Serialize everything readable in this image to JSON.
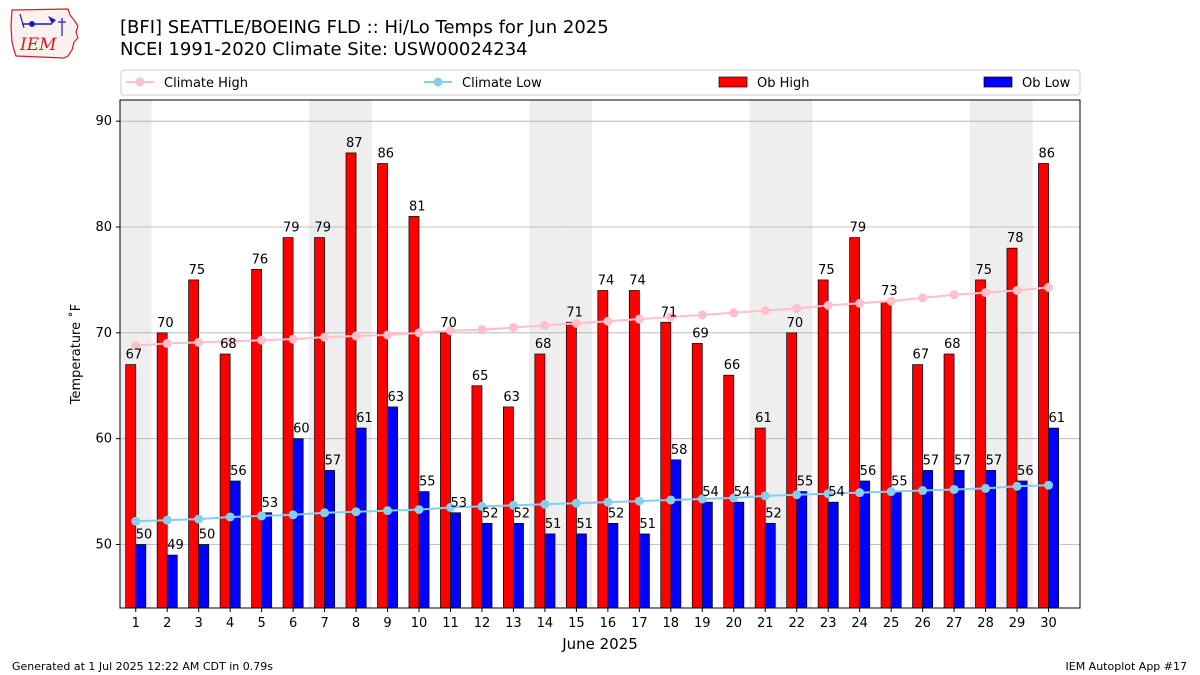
{
  "header": {
    "title_line1": "[BFI] SEATTLE/BOEING FLD :: Hi/Lo Temps for Jun 2025",
    "title_line2": "NCEI 1991-2020 Climate Site: USW00024234",
    "logo_text": "IEM"
  },
  "footer": {
    "generated": "Generated at 1 Jul 2025 12:22 AM CDT in 0.79s",
    "app": "IEM Autoplot App #17"
  },
  "colors": {
    "ob_high": "#ff0000",
    "ob_low": "#0000ff",
    "climate_high": "#ffc0cb",
    "climate_low": "#87ceeb",
    "weekend_shade": "#eeeeee",
    "grid": "#b0b0b0"
  },
  "chart_data": {
    "type": "bar",
    "xlabel": "June 2025",
    "ylabel": "Temperature ˚F",
    "ylim": [
      44,
      92
    ],
    "yticks": [
      50,
      60,
      70,
      80,
      90
    ],
    "grid": "horizontal",
    "legend_placement": "top",
    "categories": [
      "1",
      "2",
      "3",
      "4",
      "5",
      "6",
      "7",
      "8",
      "9",
      "10",
      "11",
      "12",
      "13",
      "14",
      "15",
      "16",
      "17",
      "18",
      "19",
      "20",
      "21",
      "22",
      "23",
      "24",
      "25",
      "26",
      "27",
      "28",
      "29",
      "30"
    ],
    "shaded_days": [
      1,
      7,
      8,
      14,
      15,
      21,
      22,
      28,
      29
    ],
    "series": [
      {
        "name": "Ob High",
        "kind": "bar",
        "values": [
          67,
          70,
          75,
          68,
          76,
          79,
          79,
          87,
          86,
          81,
          70,
          65,
          63,
          68,
          71,
          74,
          74,
          71,
          69,
          66,
          61,
          70,
          75,
          79,
          73,
          67,
          68,
          75,
          78,
          86
        ]
      },
      {
        "name": "Ob Low",
        "kind": "bar",
        "values": [
          50,
          49,
          50,
          56,
          53,
          60,
          57,
          61,
          63,
          55,
          53,
          52,
          52,
          51,
          51,
          52,
          51,
          58,
          54,
          54,
          52,
          55,
          54,
          56,
          55,
          57,
          57,
          57,
          56,
          61
        ]
      },
      {
        "name": "Climate High",
        "kind": "line",
        "values": [
          68.8,
          69.0,
          69.1,
          69.2,
          69.3,
          69.4,
          69.6,
          69.7,
          69.8,
          70.0,
          70.2,
          70.3,
          70.5,
          70.7,
          70.9,
          71.1,
          71.3,
          71.5,
          71.7,
          71.9,
          72.1,
          72.3,
          72.6,
          72.8,
          73.0,
          73.3,
          73.6,
          73.8,
          74.0,
          74.3
        ]
      },
      {
        "name": "Climate Low",
        "kind": "line",
        "values": [
          52.2,
          52.3,
          52.4,
          52.6,
          52.7,
          52.8,
          53.0,
          53.1,
          53.2,
          53.3,
          53.5,
          53.6,
          53.7,
          53.8,
          53.9,
          54.0,
          54.1,
          54.2,
          54.3,
          54.4,
          54.6,
          54.7,
          54.8,
          54.9,
          55.0,
          55.1,
          55.2,
          55.3,
          55.5,
          55.6
        ]
      }
    ],
    "legend": [
      "Climate High",
      "Climate Low",
      "Ob High",
      "Ob Low"
    ]
  }
}
